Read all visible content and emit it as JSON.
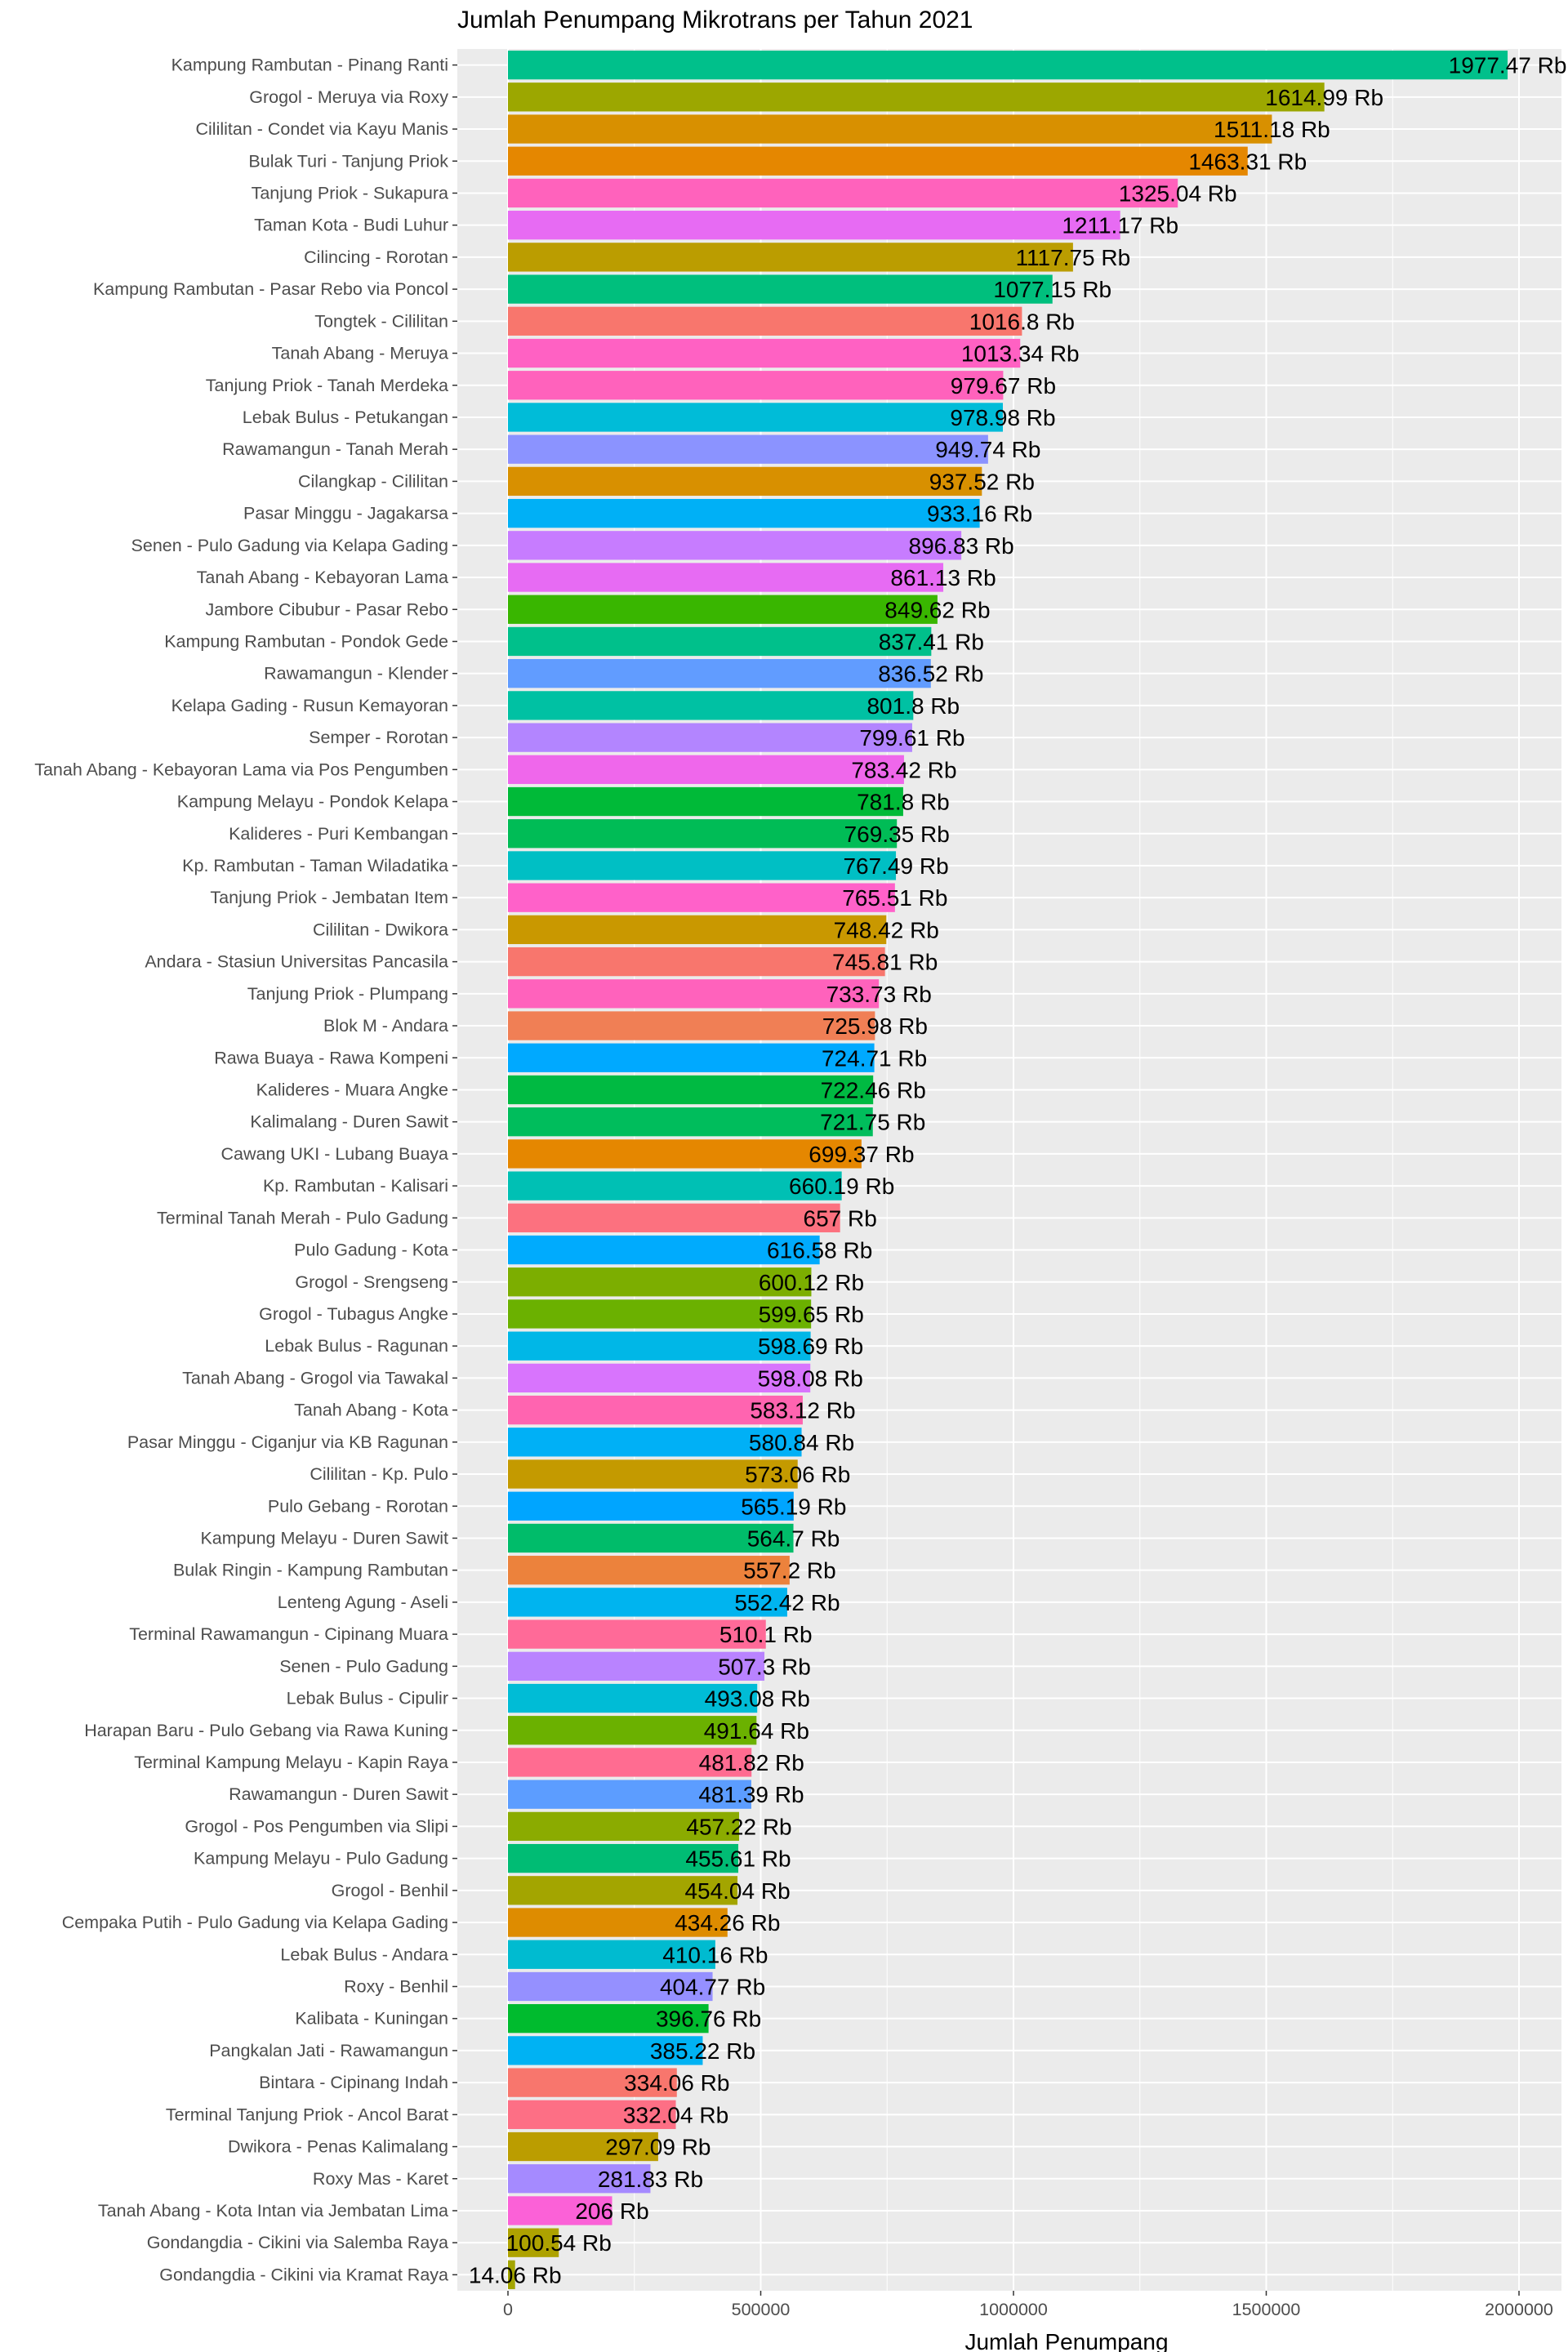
{
  "chart_data": {
    "type": "bar",
    "orientation": "horizontal",
    "title": "Jumlah Penumpang Mikrotrans per Tahun 2021",
    "xlabel": "Jumlah Penumpang",
    "ylabel": "",
    "xlim": [
      0,
      2000000
    ],
    "xticks": [
      0,
      500000,
      1000000,
      1500000,
      2000000
    ],
    "xtick_labels": [
      "0",
      "500000",
      "1000000",
      "1500000",
      "2000000"
    ],
    "grid": true,
    "legend": "none",
    "bars": [
      {
        "category": "Kampung Rambutan - Pinang Ranti",
        "value": 1977470,
        "label": "1977.47 Rb",
        "color": "#00C08B"
      },
      {
        "category": "Grogol - Meruya via Roxy",
        "value": 1614990,
        "label": "1614.99 Rb",
        "color": "#9CA700"
      },
      {
        "category": "Cililitan - Condet via Kayu Manis",
        "value": 1511180,
        "label": "1511.18 Rb",
        "color": "#D89000"
      },
      {
        "category": "Bulak Turi - Tanjung Priok",
        "value": 1463310,
        "label": "1463.31 Rb",
        "color": "#E58700"
      },
      {
        "category": "Tanjung Priok - Sukapura",
        "value": 1325040,
        "label": "1325.04 Rb",
        "color": "#FF62BC"
      },
      {
        "category": "Taman Kota - Budi Luhur",
        "value": 1211170,
        "label": "1211.17 Rb",
        "color": "#E76BF3"
      },
      {
        "category": "Cilincing - Rorotan",
        "value": 1117750,
        "label": "1117.75 Rb",
        "color": "#BB9D00"
      },
      {
        "category": "Kampung Rambutan - Pasar Rebo via Poncol",
        "value": 1077150,
        "label": "1077.15 Rb",
        "color": "#00BF7D"
      },
      {
        "category": "Tongtek - Cililitan",
        "value": 1016800,
        "label": "1016.8 Rb",
        "color": "#F8766D"
      },
      {
        "category": "Tanah Abang - Meruya",
        "value": 1013340,
        "label": "1013.34 Rb",
        "color": "#FF61C3"
      },
      {
        "category": "Tanjung Priok - Tanah Merdeka",
        "value": 979670,
        "label": "979.67 Rb",
        "color": "#FF62BC"
      },
      {
        "category": "Lebak Bulus - Petukangan",
        "value": 978980,
        "label": "978.98 Rb",
        "color": "#00BCD8"
      },
      {
        "category": "Rawamangun - Tanah Merah",
        "value": 949740,
        "label": "949.74 Rb",
        "color": "#8B93FF"
      },
      {
        "category": "Cilangkap - Cililitan",
        "value": 937520,
        "label": "937.52 Rb",
        "color": "#D89000"
      },
      {
        "category": "Pasar Minggu - Jagakarsa",
        "value": 933160,
        "label": "933.16 Rb",
        "color": "#00B0F6"
      },
      {
        "category": "Senen - Pulo Gadung via Kelapa Gading",
        "value": 896830,
        "label": "896.83 Rb",
        "color": "#C77CFF"
      },
      {
        "category": "Tanah Abang - Kebayoran Lama",
        "value": 861130,
        "label": "861.13 Rb",
        "color": "#E76BF3"
      },
      {
        "category": "Jambore Cibubur - Pasar Rebo",
        "value": 849620,
        "label": "849.62 Rb",
        "color": "#39B600"
      },
      {
        "category": "Kampung Rambutan - Pondok Gede",
        "value": 837410,
        "label": "837.41 Rb",
        "color": "#00C08B"
      },
      {
        "category": "Rawamangun - Klender",
        "value": 836520,
        "label": "836.52 Rb",
        "color": "#619CFF"
      },
      {
        "category": "Kelapa Gading - Rusun Kemayoran",
        "value": 801800,
        "label": "801.8 Rb",
        "color": "#00C1A3"
      },
      {
        "category": "Semper - Rorotan",
        "value": 799610,
        "label": "799.61 Rb",
        "color": "#B385FF"
      },
      {
        "category": "Tanah Abang - Kebayoran Lama via Pos Pengumben",
        "value": 783420,
        "label": "783.42 Rb",
        "color": "#EF67EB"
      },
      {
        "category": "Kampung Melayu - Pondok Kelapa",
        "value": 781800,
        "label": "781.8 Rb",
        "color": "#00BA38"
      },
      {
        "category": "Kalideres - Puri Kembangan",
        "value": 769350,
        "label": "769.35 Rb",
        "color": "#00BC56"
      },
      {
        "category": "Kp. Rambutan - Taman Wiladatika",
        "value": 767490,
        "label": "767.49 Rb",
        "color": "#00BFC4"
      },
      {
        "category": "Tanjung Priok - Jembatan Item",
        "value": 765510,
        "label": "765.51 Rb",
        "color": "#FF61C9"
      },
      {
        "category": "Cililitan - Dwikora",
        "value": 748420,
        "label": "748.42 Rb",
        "color": "#C99800"
      },
      {
        "category": "Andara - Stasiun Universitas Pancasila",
        "value": 745810,
        "label": "745.81 Rb",
        "color": "#F8766D"
      },
      {
        "category": "Tanjung Priok - Plumpang",
        "value": 733730,
        "label": "733.73 Rb",
        "color": "#FF62BC"
      },
      {
        "category": "Blok M - Andara",
        "value": 725980,
        "label": "725.98 Rb",
        "color": "#F07F55"
      },
      {
        "category": "Rawa Buaya - Rawa Kompeni",
        "value": 724710,
        "label": "724.71 Rb",
        "color": "#00A9FF"
      },
      {
        "category": "Kalideres - Muara Angke",
        "value": 722460,
        "label": "722.46 Rb",
        "color": "#00BA42"
      },
      {
        "category": "Kalimalang - Duren Sawit",
        "value": 721750,
        "label": "721.75 Rb",
        "color": "#00BD5C"
      },
      {
        "category": "Cawang UKI - Lubang Buaya",
        "value": 699370,
        "label": "699.37 Rb",
        "color": "#E58700"
      },
      {
        "category": "Kp. Rambutan - Kalisari",
        "value": 660190,
        "label": "660.19 Rb",
        "color": "#00C0B4"
      },
      {
        "category": "Terminal Tanah Merah - Pulo Gadung",
        "value": 657000,
        "label": "657 Rb",
        "color": "#FC717F"
      },
      {
        "category": "Pulo Gadung - Kota",
        "value": 616580,
        "label": "616.58 Rb",
        "color": "#00ABFD"
      },
      {
        "category": "Grogol - Srengseng",
        "value": 600120,
        "label": "600.12 Rb",
        "color": "#7CAE00"
      },
      {
        "category": "Grogol - Tubagus Angke",
        "value": 599650,
        "label": "599.65 Rb",
        "color": "#6BB100"
      },
      {
        "category": "Lebak Bulus - Ragunan",
        "value": 598690,
        "label": "598.69 Rb",
        "color": "#00B7E7"
      },
      {
        "category": "Tanah Abang - Grogol via Tawakal",
        "value": 598080,
        "label": "598.08 Rb",
        "color": "#D874FD"
      },
      {
        "category": "Tanah Abang - Kota",
        "value": 583120,
        "label": "583.12 Rb",
        "color": "#FF64B0"
      },
      {
        "category": "Pasar Minggu - Ciganjur via KB Ragunan",
        "value": 580840,
        "label": "580.84 Rb",
        "color": "#00B0F6"
      },
      {
        "category": "Cililitan - Kp. Pulo",
        "value": 573060,
        "label": "573.06 Rb",
        "color": "#C49A00"
      },
      {
        "category": "Pulo Gebang - Rorotan",
        "value": 565190,
        "label": "565.19 Rb",
        "color": "#00A5FF"
      },
      {
        "category": "Kampung Melayu - Duren Sawit",
        "value": 564700,
        "label": "564.7 Rb",
        "color": "#00BC6A"
      },
      {
        "category": "Bulak Ringin - Kampung Rambutan",
        "value": 557200,
        "label": "557.2 Rb",
        "color": "#EC823C"
      },
      {
        "category": "Lenteng Agung - Aseli",
        "value": 552420,
        "label": "552.42 Rb",
        "color": "#00B4EF"
      },
      {
        "category": "Terminal Rawamangun - Cipinang Muara",
        "value": 510100,
        "label": "510.1 Rb",
        "color": "#FF6A98"
      },
      {
        "category": "Senen - Pulo Gadung",
        "value": 507300,
        "label": "507.3 Rb",
        "color": "#B983FF"
      },
      {
        "category": "Lebak Bulus - Cipulir",
        "value": 493080,
        "label": "493.08 Rb",
        "color": "#00BCD6"
      },
      {
        "category": "Harapan Baru - Pulo Gebang via Rawa Kuning",
        "value": 491640,
        "label": "491.64 Rb",
        "color": "#6BB100"
      },
      {
        "category": "Terminal Kampung Melayu - Kapin Raya",
        "value": 481820,
        "label": "481.82 Rb",
        "color": "#FF6C91"
      },
      {
        "category": "Rawamangun - Duren Sawit",
        "value": 481390,
        "label": "481.39 Rb",
        "color": "#5C9DFF"
      },
      {
        "category": "Grogol - Pos Pengumben via Slipi",
        "value": 457220,
        "label": "457.22 Rb",
        "color": "#8BAB00"
      },
      {
        "category": "Kampung Melayu - Pulo Gadung",
        "value": 455610,
        "label": "455.61 Rb",
        "color": "#00BC74"
      },
      {
        "category": "Grogol - Benhil",
        "value": 454040,
        "label": "454.04 Rb",
        "color": "#A3A500"
      },
      {
        "category": "Cempaka Putih - Pulo Gadung via Kelapa Gading",
        "value": 434260,
        "label": "434.26 Rb",
        "color": "#DE8C00"
      },
      {
        "category": "Lebak Bulus - Andara",
        "value": 410160,
        "label": "410.16 Rb",
        "color": "#00BBD0"
      },
      {
        "category": "Roxy - Benhil",
        "value": 404770,
        "label": "404.77 Rb",
        "color": "#9590FF"
      },
      {
        "category": "Kalibata - Kuningan",
        "value": 396760,
        "label": "396.76 Rb",
        "color": "#00BB2E"
      },
      {
        "category": "Pangkalan  Jati - Rawamangun",
        "value": 385220,
        "label": "385.22 Rb",
        "color": "#00B2F3"
      },
      {
        "category": "Bintara - Cipinang Indah",
        "value": 334060,
        "label": "334.06 Rb",
        "color": "#F8766D"
      },
      {
        "category": "Terminal Tanjung Priok - Ancol Barat",
        "value": 332040,
        "label": "332.04 Rb",
        "color": "#FD6F85"
      },
      {
        "category": "Dwikora - Penas Kalimalang",
        "value": 297090,
        "label": "297.09 Rb",
        "color": "#BB9D00"
      },
      {
        "category": "Roxy Mas - Karet",
        "value": 281830,
        "label": "281.83 Rb",
        "color": "#A58AFF"
      },
      {
        "category": "Tanah Abang - Kota Intan via Jembatan Lima",
        "value": 206000,
        "label": "206 Rb",
        "color": "#FB61D7"
      },
      {
        "category": "Gondangdia - Cikini via Salemba Raya",
        "value": 100540,
        "label": "100.54 Rb",
        "color": "#AEA200"
      },
      {
        "category": "Gondangdia - Cikini via Kramat Raya",
        "value": 14060,
        "label": "14.06 Rb",
        "color": "#A3A500"
      }
    ]
  }
}
